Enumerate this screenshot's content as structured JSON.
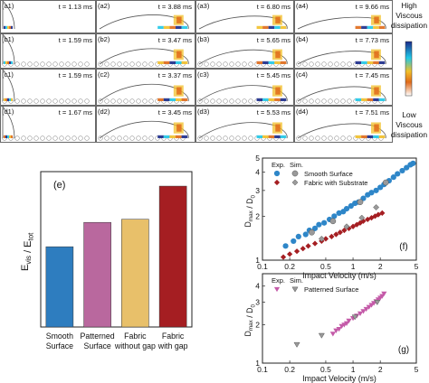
{
  "panels": {
    "rows": [
      [
        {
          "label": "(a1)",
          "time": "t = 1.13 ms"
        },
        {
          "label": "(a2)",
          "time": "t = 3.88 ms"
        },
        {
          "label": "(a3)",
          "time": "t = 6.80 ms"
        },
        {
          "label": "(a4)",
          "time": "t = 9.66 ms"
        }
      ],
      [
        {
          "label": "(b1)",
          "time": "t = 1.59 ms"
        },
        {
          "label": "(b2)",
          "time": "t = 3.47 ms"
        },
        {
          "label": "(b3)",
          "time": "t = 5.65 ms"
        },
        {
          "label": "(b4)",
          "time": "t = 7.73 ms"
        }
      ],
      [
        {
          "label": "(c1)",
          "time": "t = 1.59 ms"
        },
        {
          "label": "(c2)",
          "time": "t = 3.37 ms"
        },
        {
          "label": "(c3)",
          "time": "t = 5.45 ms"
        },
        {
          "label": "(c4)",
          "time": "t = 7.45 ms"
        }
      ],
      [
        {
          "label": "(d1)",
          "time": "t = 1.67 ms"
        },
        {
          "label": "(d2)",
          "time": "t = 3.45 ms"
        },
        {
          "label": "(d3)",
          "time": "t = 5.53 ms"
        },
        {
          "label": "(d4)",
          "time": "t = 7.51 ms"
        }
      ]
    ],
    "row_styles": [
      "smooth",
      "patterned",
      "fabric",
      "fabric_sub"
    ]
  },
  "colorbar": {
    "top_label": [
      "High",
      "Viscous",
      "dissipation"
    ],
    "bottom_label": [
      "Low",
      "Viscous",
      "dissipation"
    ],
    "colors": {
      "high": "#1a2a8a",
      "mid_high": "#20c8e8",
      "mid": "#f2c02a",
      "mid_low": "#e06a1a",
      "low": "#ffffff"
    }
  },
  "chart_data": [
    {
      "type": "bar",
      "panel_label": "(e)",
      "ylabel": "E_vis / E_tot",
      "categories": [
        [
          "Smooth",
          "Surface"
        ],
        [
          "Patterned",
          "Surface"
        ],
        [
          "Fabric",
          "without gap"
        ],
        [
          "Fabric",
          "with gap"
        ]
      ],
      "values": [
        0.155,
        0.202,
        0.208,
        0.272
      ],
      "colors": [
        "#2e7dbf",
        "#b9689e",
        "#e8c06a",
        "#a51e22"
      ],
      "ylim": [
        0,
        0.3
      ]
    },
    {
      "type": "scatter",
      "panel_label": "(f)",
      "xlabel": "Impact Velocity (m/s)",
      "ylabel": "D_max / D_0",
      "xscale": "log",
      "yscale": "log",
      "xlim": [
        0.1,
        5
      ],
      "ylim": [
        1,
        5
      ],
      "x_ticks": [
        0.1,
        0.2,
        0.5,
        1,
        2,
        5
      ],
      "y_ticks": [
        1,
        2,
        3,
        4,
        5
      ],
      "legend": {
        "header_exp": "Exp.",
        "header_sim": "Sim."
      },
      "series": [
        {
          "name": "Smooth Surface",
          "kind": "exp",
          "marker": "circle",
          "color": "#2e86c8",
          "x": [
            0.18,
            0.22,
            0.25,
            0.3,
            0.33,
            0.38,
            0.42,
            0.48,
            0.55,
            0.62,
            0.7,
            0.78,
            0.85,
            0.95,
            1.05,
            1.15,
            1.3,
            1.45,
            1.6,
            1.8,
            2.0,
            2.2,
            2.5,
            2.8,
            3.1,
            3.5,
            3.9,
            4.3,
            4.6
          ],
          "y": [
            1.25,
            1.35,
            1.45,
            1.5,
            1.6,
            1.65,
            1.75,
            1.8,
            1.9,
            2.0,
            2.1,
            2.15,
            2.25,
            2.35,
            2.45,
            2.5,
            2.65,
            2.8,
            2.9,
            3.0,
            3.15,
            3.3,
            3.5,
            3.7,
            3.9,
            4.1,
            4.3,
            4.5,
            4.6
          ]
        },
        {
          "name": "Smooth Surface",
          "kind": "sim",
          "marker": "circle",
          "color": "#9a9a9a",
          "x": [
            0.35,
            0.6,
            1.2,
            2.3
          ],
          "y": [
            1.55,
            1.85,
            2.5,
            3.4
          ]
        },
        {
          "name": "Fabric with Substrate",
          "kind": "exp",
          "marker": "diamond",
          "color": "#a51e22",
          "x": [
            0.17,
            0.2,
            0.24,
            0.28,
            0.32,
            0.38,
            0.45,
            0.5,
            0.58,
            0.65,
            0.72,
            0.8,
            0.9,
            1.0,
            1.1,
            1.2,
            1.3,
            1.45,
            1.6,
            1.75,
            1.9,
            2.1
          ],
          "y": [
            1.05,
            1.1,
            1.15,
            1.2,
            1.25,
            1.3,
            1.35,
            1.4,
            1.45,
            1.5,
            1.55,
            1.6,
            1.65,
            1.7,
            1.75,
            1.8,
            1.85,
            1.9,
            1.95,
            2.0,
            2.05,
            2.1
          ]
        },
        {
          "name": "Fabric with Substrate",
          "kind": "sim",
          "marker": "diamond",
          "color": "#9a9a9a",
          "x": [
            0.45,
            0.85,
            1.25,
            1.8
          ],
          "y": [
            1.4,
            1.7,
            1.95,
            2.3
          ]
        }
      ]
    },
    {
      "type": "scatter",
      "panel_label": "(g)",
      "xlabel": "Impact Velocity (m/s)",
      "ylabel": "D_max / D_0",
      "xscale": "log",
      "yscale": "log",
      "xlim": [
        0.1,
        5
      ],
      "ylim": [
        1,
        5
      ],
      "x_ticks": [
        0.1,
        0.2,
        0.5,
        1,
        2,
        5
      ],
      "y_ticks": [
        1,
        2,
        3,
        4
      ],
      "legend": {
        "header_exp": "Exp.",
        "header_sim": "Sim."
      },
      "series": [
        {
          "name": "Patterned Surface",
          "kind": "exp",
          "marker": "triangle-down",
          "color": "#c45aa8",
          "x": [
            0.6,
            0.65,
            0.7,
            0.75,
            0.8,
            0.85,
            0.9,
            1.0,
            1.1,
            1.2,
            1.3,
            1.4,
            1.5,
            1.6,
            1.7,
            1.8,
            1.9,
            2.0,
            2.1,
            2.2
          ],
          "y": [
            1.7,
            1.8,
            1.85,
            1.95,
            2.0,
            2.05,
            2.15,
            2.25,
            2.35,
            2.45,
            2.55,
            2.65,
            2.75,
            2.85,
            2.95,
            3.05,
            3.15,
            3.25,
            3.35,
            3.5
          ]
        },
        {
          "name": "Patterned Surface",
          "kind": "sim",
          "marker": "triangle-down",
          "color": "#9a9a9a",
          "x": [
            0.24,
            0.45,
            1.05,
            1.85
          ],
          "y": [
            1.4,
            1.65,
            2.3,
            3.0
          ]
        }
      ]
    }
  ]
}
